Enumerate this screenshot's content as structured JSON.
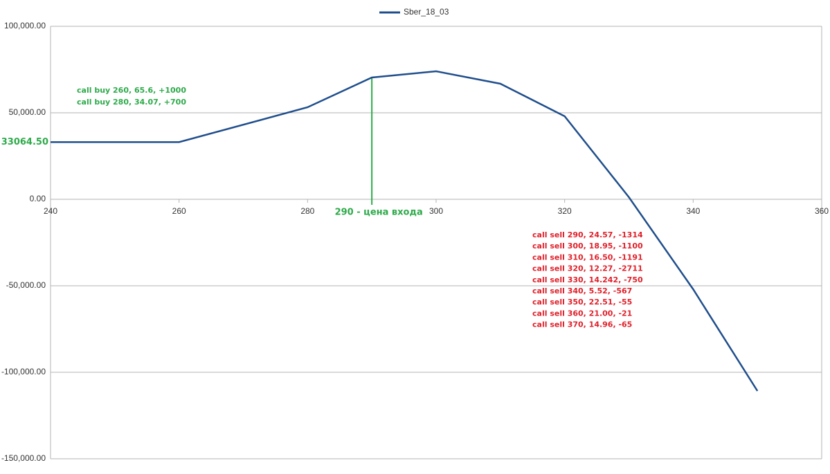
{
  "chart_data": {
    "type": "line",
    "x": [
      240,
      260,
      280,
      290,
      300,
      310,
      320,
      330,
      340,
      350
    ],
    "series": [
      {
        "name": "Sber_18_03",
        "color": "#1f4e8c",
        "values": [
          33064.5,
          33064.5,
          53200,
          70400,
          74000,
          66800,
          48000,
          1200,
          -52000,
          -110800
        ]
      }
    ],
    "xlim": [
      240,
      360
    ],
    "xticks": [
      240,
      260,
      280,
      300,
      320,
      340,
      360
    ],
    "ylim": [
      -150000,
      100000
    ],
    "yticks": [
      {
        "value": -150000,
        "label": "-150,000.00"
      },
      {
        "value": -100000,
        "label": "-100,000.00"
      },
      {
        "value": -50000,
        "label": "-50,000.00"
      },
      {
        "value": 0,
        "label": "0.00"
      },
      {
        "value": 50000,
        "label": "50,000.00"
      },
      {
        "value": 100000,
        "label": "100,000.00"
      }
    ],
    "grid": true,
    "legend": "top",
    "level_label": {
      "value": 33064.5,
      "label": "33064.50",
      "color": "#2eaa4a"
    },
    "entry_marker": {
      "x": 290,
      "label": "290 - цена входа",
      "color": "#2eaa4a"
    },
    "buy_notes": {
      "color": "#2eaa4a",
      "lines": [
        "call buy 260, 65.6, +1000",
        "call buy 280, 34.07, +700"
      ]
    },
    "sell_notes": {
      "color": "#e0202a",
      "lines": [
        "call sell 290, 24.57, -1314",
        "call sell 300, 18.95, -1100",
        "call sell 310, 16.50, -1191",
        "call sell 320, 12.27, -2711",
        "call sell 330, 14.242, -750",
        "call sell 340, 5.52, -567",
        "call sell 350, 22.51, -55",
        "call sell 360, 21.00, -21",
        "call sell 370, 14.96, -65"
      ]
    }
  }
}
